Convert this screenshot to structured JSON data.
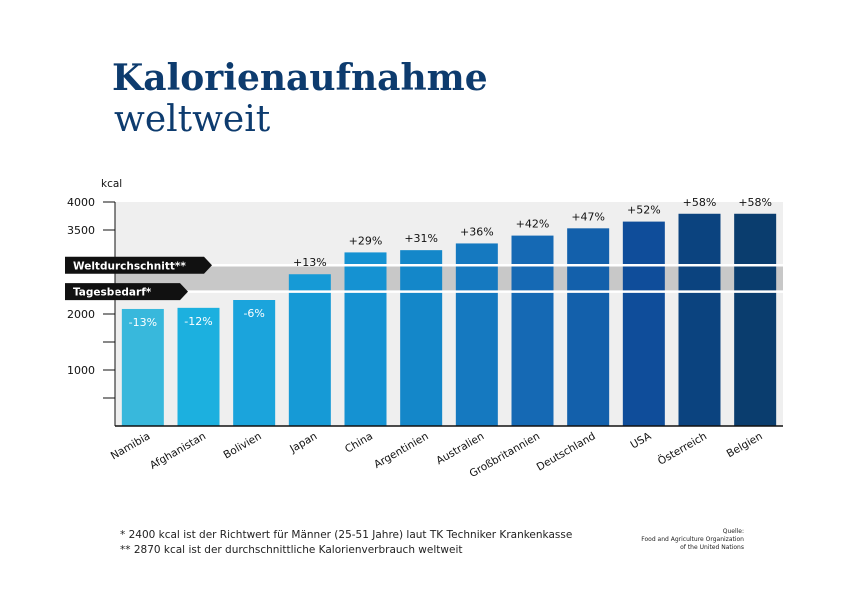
{
  "title": "Kalorienaufnahme",
  "subtitle": "weltweit",
  "chart_data": {
    "type": "bar",
    "ylabel": "kcal",
    "ylim": [
      0,
      4000
    ],
    "yticks": [
      1000,
      2000,
      3500,
      4000
    ],
    "categories": [
      "Namibia",
      "Afghanistan",
      "Bolivien",
      "Japan",
      "China",
      "Argentinien",
      "Australien",
      "Großbritannien",
      "Deutschland",
      "USA",
      "Österreich",
      "Belgien"
    ],
    "values": [
      2090,
      2110,
      2250,
      2710,
      3100,
      3140,
      3260,
      3400,
      3530,
      3650,
      3790,
      3790
    ],
    "data_labels": [
      "-13%",
      "-12%",
      "-6%",
      "+13%",
      "+29%",
      "+31%",
      "+36%",
      "+42%",
      "+47%",
      "+52%",
      "+58%",
      "+58%"
    ],
    "colors": [
      "#38b8dc",
      "#1cb0df",
      "#1ba4dc",
      "#169ad6",
      "#1592d2",
      "#1487c9",
      "#1579c0",
      "#1569b4",
      "#1360ab",
      "#0f4d9a",
      "#0b437f",
      "#0a3d6e"
    ],
    "reference_lines": [
      {
        "label": "Weltdurchschnitt**",
        "value": 2870
      },
      {
        "label": "Tagesbedarf*",
        "value": 2400
      }
    ],
    "band_color": "#c8c8c8",
    "background_color": "#efefef"
  },
  "footnotes": [
    "* 2400 kcal ist der Richtwert für Männer (25-51 Jahre) laut TK Techniker Krankenkasse",
    "** 2870 kcal ist der durchschnittliche Kalorienverbrauch weltweit"
  ],
  "source": {
    "label": "Quelle:",
    "lines": [
      "Food and Agriculture Organization",
      "of the United Nations"
    ]
  }
}
